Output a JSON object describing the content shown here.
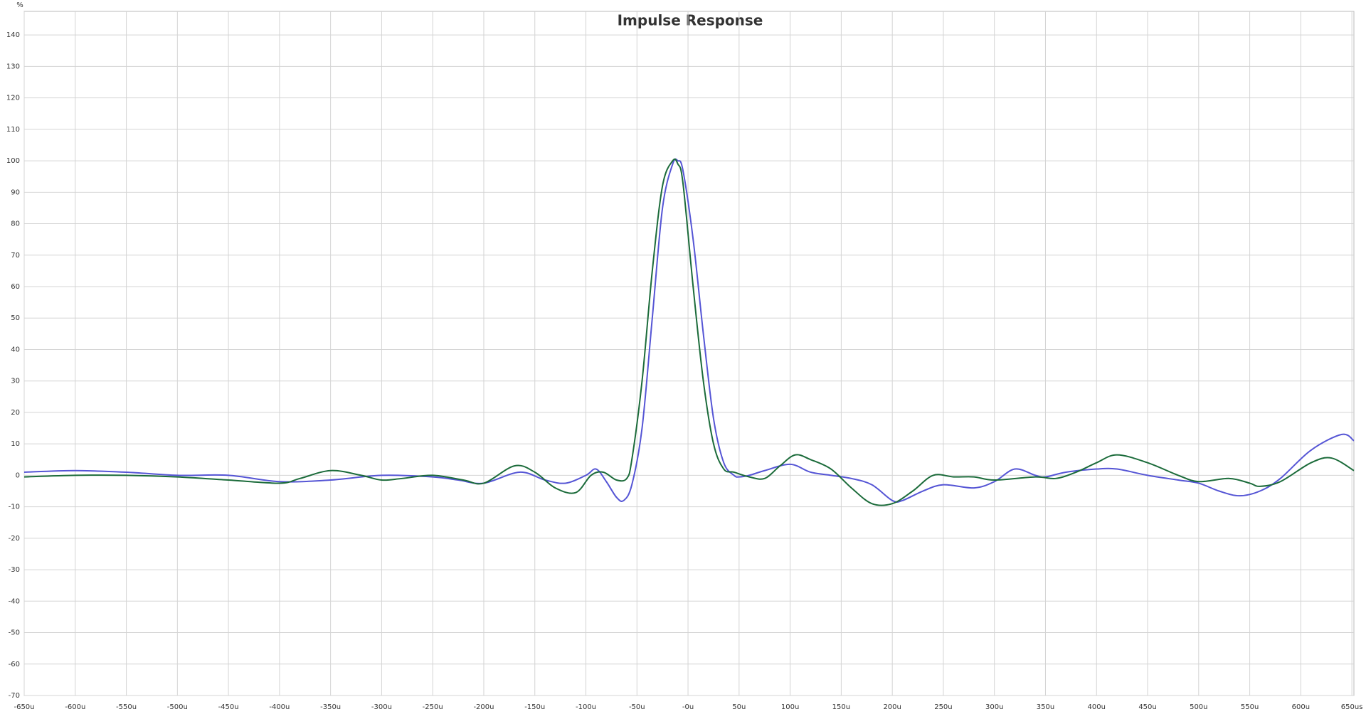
{
  "chart_data": {
    "type": "line",
    "title": "Impulse Response",
    "y_label": "%",
    "xlim": [
      -650,
      652
    ],
    "ylim": [
      -70,
      147.5
    ],
    "grid": true,
    "xticks": [
      {
        "value": -650,
        "label": "-650u"
      },
      {
        "value": -600,
        "label": "-600u"
      },
      {
        "value": -550,
        "label": "-550u"
      },
      {
        "value": -500,
        "label": "-500u"
      },
      {
        "value": -450,
        "label": "-450u"
      },
      {
        "value": -400,
        "label": "-400u"
      },
      {
        "value": -350,
        "label": "-350u"
      },
      {
        "value": -300,
        "label": "-300u"
      },
      {
        "value": -250,
        "label": "-250u"
      },
      {
        "value": -200,
        "label": "-200u"
      },
      {
        "value": -150,
        "label": "-150u"
      },
      {
        "value": -100,
        "label": "-100u"
      },
      {
        "value": -50,
        "label": "-50u"
      },
      {
        "value": 0,
        "label": "-0u"
      },
      {
        "value": 50,
        "label": "50u"
      },
      {
        "value": 100,
        "label": "100u"
      },
      {
        "value": 150,
        "label": "150u"
      },
      {
        "value": 200,
        "label": "200u"
      },
      {
        "value": 250,
        "label": "250u"
      },
      {
        "value": 300,
        "label": "300u"
      },
      {
        "value": 350,
        "label": "350u"
      },
      {
        "value": 400,
        "label": "400u"
      },
      {
        "value": 450,
        "label": "450u"
      },
      {
        "value": 500,
        "label": "500u"
      },
      {
        "value": 550,
        "label": "550u"
      },
      {
        "value": 600,
        "label": "600u"
      },
      {
        "value": 650,
        "label": "650us"
      }
    ],
    "yticks": [
      -70,
      -60,
      -50,
      -40,
      -30,
      -20,
      -10,
      0,
      10,
      20,
      30,
      40,
      50,
      60,
      70,
      80,
      90,
      100,
      110,
      120,
      130,
      140
    ],
    "series": [
      {
        "color": "#5555d5",
        "x": [
          -650,
          -600,
          -550,
          -500,
          -450,
          -400,
          -350,
          -300,
          -250,
          -225,
          -200,
          -165,
          -140,
          -120,
          -100,
          -90,
          -80,
          -70,
          -63,
          -55,
          -45,
          -35,
          -25,
          -15,
          -10,
          -5,
          5,
          15,
          25,
          35,
          45,
          50,
          60,
          75,
          100,
          120,
          140,
          160,
          180,
          200,
          210,
          230,
          250,
          280,
          300,
          320,
          340,
          350,
          370,
          400,
          420,
          450,
          480,
          500,
          520,
          540,
          560,
          580,
          610,
          640,
          652
        ],
        "values": [
          1,
          1.5,
          1,
          0,
          0,
          -2,
          -1.5,
          0,
          -0.5,
          -1.5,
          -2.5,
          1,
          -1.5,
          -2.5,
          0,
          2,
          -2,
          -7,
          -8,
          -3,
          15,
          50,
          85,
          99,
          100,
          97,
          75,
          45,
          18,
          4,
          0,
          -0.5,
          0,
          1.5,
          3.5,
          1,
          0,
          -1,
          -3,
          -8,
          -8,
          -5,
          -3,
          -4,
          -2,
          2,
          0,
          -0.5,
          1,
          2,
          2,
          0,
          -1.5,
          -2.5,
          -5,
          -6.5,
          -5,
          -1,
          8,
          13,
          11
        ]
      },
      {
        "color": "#1b6b3a",
        "x": [
          -650,
          -600,
          -550,
          -500,
          -450,
          -400,
          -380,
          -350,
          -320,
          -300,
          -280,
          -250,
          -220,
          -200,
          -170,
          -150,
          -130,
          -110,
          -95,
          -83,
          -70,
          -60,
          -55,
          -45,
          -35,
          -25,
          -15,
          -10,
          -5,
          5,
          15,
          25,
          35,
          45,
          60,
          75,
          90,
          105,
          120,
          140,
          160,
          180,
          200,
          220,
          240,
          260,
          280,
          300,
          340,
          360,
          380,
          400,
          420,
          450,
          480,
          500,
          530,
          550,
          560,
          580,
          610,
          630,
          652
        ],
        "values": [
          -0.5,
          0,
          0,
          -0.5,
          -1.5,
          -2.5,
          -1,
          1.5,
          0,
          -1.5,
          -1,
          0,
          -1.5,
          -2.5,
          3,
          1,
          -4,
          -5.5,
          0,
          1,
          -1.5,
          -1,
          5,
          30,
          65,
          92,
          100,
          99,
          93,
          60,
          30,
          10,
          2,
          1,
          -0.5,
          -1,
          3,
          6.5,
          5,
          2,
          -4,
          -9,
          -9,
          -5,
          0,
          -0.5,
          -0.5,
          -1.5,
          -0.5,
          -1,
          1,
          4,
          6.5,
          4,
          0,
          -2,
          -1,
          -2.5,
          -3.5,
          -2,
          4,
          5.5,
          1.5
        ]
      }
    ]
  }
}
